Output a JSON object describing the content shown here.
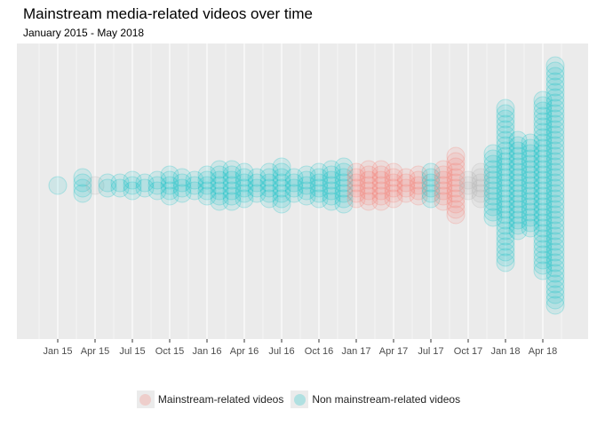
{
  "title": "Mainstream media-related videos over time",
  "subtitle": "January 2015 - May 2018",
  "legend": {
    "mainstream_label": "Mainstream-related videos",
    "non_mainstream_label": "Non mainstream-related videos"
  },
  "colors": {
    "panel": "#ebebeb",
    "grid": "#ffffff",
    "mainstream": "#f8766d",
    "non_mainstream": "#00bfc4",
    "mixed": "#b0b0b0"
  },
  "chart_data": {
    "type": "scatter",
    "title": "Mainstream media-related videos over time",
    "subtitle": "January 2015 - May 2018",
    "x_axis": "month",
    "y_axis": "stacked count (beeswarm, no labels)",
    "x_ticks": [
      "Jan 15",
      "Apr 15",
      "Jul 15",
      "Oct 15",
      "Jan 16",
      "Apr 16",
      "Jul 16",
      "Oct 16",
      "Jan 17",
      "Apr 17",
      "Jul 17",
      "Oct 17",
      "Jan 18",
      "Apr 18"
    ],
    "grid": true,
    "legend_position": "bottom",
    "series": [
      {
        "name": "Mainstream-related videos",
        "color": "#f8766d"
      },
      {
        "name": "Non mainstream-related videos",
        "color": "#00bfc4"
      }
    ],
    "points": [
      {
        "month": "2015-01",
        "count": 1,
        "group": "Non mainstream-related videos"
      },
      {
        "month": "2015-03",
        "count": 4,
        "group": "Non mainstream-related videos"
      },
      {
        "month": "2015-04",
        "count": 1,
        "group": "Mixed"
      },
      {
        "month": "2015-05",
        "count": 2,
        "group": "Non mainstream-related videos"
      },
      {
        "month": "2015-06",
        "count": 2,
        "group": "Non mainstream-related videos"
      },
      {
        "month": "2015-07",
        "count": 3,
        "group": "Non mainstream-related videos"
      },
      {
        "month": "2015-08",
        "count": 2,
        "group": "Non mainstream-related videos"
      },
      {
        "month": "2015-09",
        "count": 3,
        "group": "Non mainstream-related videos"
      },
      {
        "month": "2015-10",
        "count": 5,
        "group": "Non mainstream-related videos"
      },
      {
        "month": "2015-11",
        "count": 4,
        "group": "Non mainstream-related videos"
      },
      {
        "month": "2015-12",
        "count": 3,
        "group": "Non mainstream-related videos"
      },
      {
        "month": "2016-01",
        "count": 5,
        "group": "Non mainstream-related videos"
      },
      {
        "month": "2016-02",
        "count": 7,
        "group": "Non mainstream-related videos"
      },
      {
        "month": "2016-03",
        "count": 7,
        "group": "Non mainstream-related videos"
      },
      {
        "month": "2016-04",
        "count": 6,
        "group": "Non mainstream-related videos"
      },
      {
        "month": "2016-05",
        "count": 4,
        "group": "Non mainstream-related videos"
      },
      {
        "month": "2016-06",
        "count": 6,
        "group": "Non mainstream-related videos"
      },
      {
        "month": "2016-07",
        "count": 8,
        "group": "Non mainstream-related videos"
      },
      {
        "month": "2016-08",
        "count": 4,
        "group": "Non mainstream-related videos"
      },
      {
        "month": "2016-09",
        "count": 5,
        "group": "Non mainstream-related videos"
      },
      {
        "month": "2016-10",
        "count": 6,
        "group": "Non mainstream-related videos"
      },
      {
        "month": "2016-11",
        "count": 7,
        "group": "Non mainstream-related videos"
      },
      {
        "month": "2016-12",
        "count": 8,
        "group": "Non mainstream-related videos"
      },
      {
        "month": "2017-01",
        "count": 6,
        "group": "Mainstream-related videos"
      },
      {
        "month": "2017-02",
        "count": 7,
        "group": "Mainstream-related videos"
      },
      {
        "month": "2017-03",
        "count": 7,
        "group": "Mainstream-related videos"
      },
      {
        "month": "2017-04",
        "count": 6,
        "group": "Mainstream-related videos"
      },
      {
        "month": "2017-05",
        "count": 4,
        "group": "Mainstream-related videos"
      },
      {
        "month": "2017-06",
        "count": 5,
        "group": "Mainstream-related videos"
      },
      {
        "month": "2017-07",
        "count": 6,
        "group": "Non mainstream-related videos"
      },
      {
        "month": "2017-08",
        "count": 7,
        "group": "Mainstream-related videos"
      },
      {
        "month": "2017-09",
        "count": 12,
        "group": "Mainstream-related videos"
      },
      {
        "month": "2017-10",
        "count": 3,
        "group": "Mixed"
      },
      {
        "month": "2017-11",
        "count": 6,
        "group": "Mixed"
      },
      {
        "month": "2017-12",
        "count": 13,
        "group": "Non mainstream-related videos"
      },
      {
        "month": "2018-01",
        "count": 30,
        "group": "Non mainstream-related videos"
      },
      {
        "month": "2018-02",
        "count": 18,
        "group": "Non mainstream-related videos"
      },
      {
        "month": "2018-03",
        "count": 17,
        "group": "Non mainstream-related videos"
      },
      {
        "month": "2018-04",
        "count": 33,
        "group": "Non mainstream-related videos"
      },
      {
        "month": "2018-05",
        "count": 46,
        "group": "Non mainstream-related videos"
      }
    ]
  }
}
